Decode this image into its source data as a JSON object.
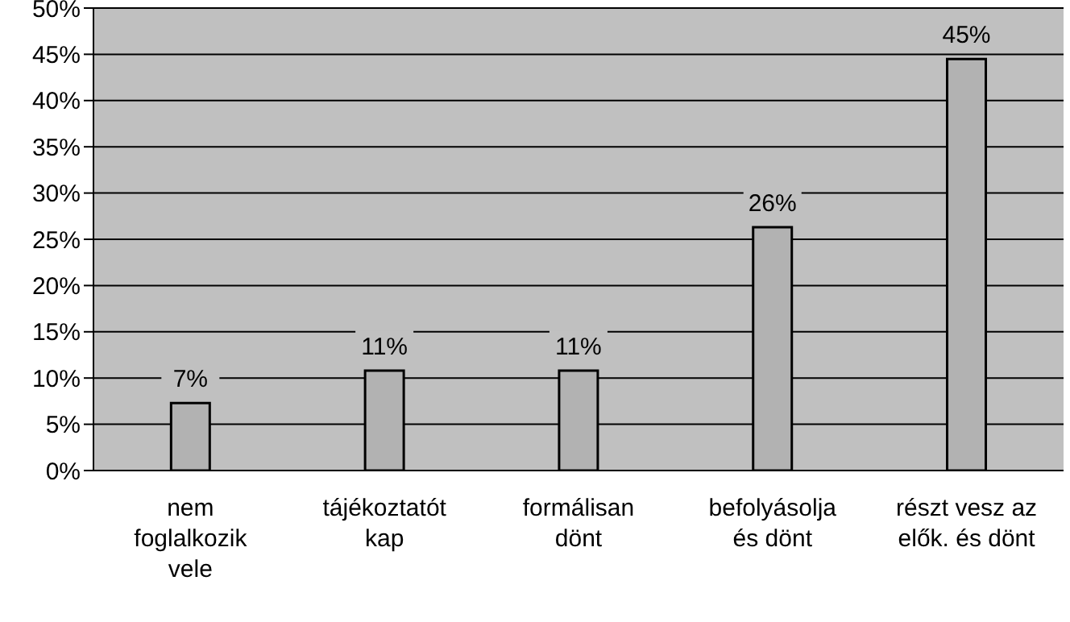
{
  "chart_data": {
    "type": "bar",
    "categories": [
      "nem foglalkozik vele",
      "tájékoztatót kap",
      "formálisan dönt",
      "befolyásolja és dönt",
      "részt vesz az elők. és dönt"
    ],
    "values": [
      7.3,
      10.8,
      10.8,
      26.3,
      44.5
    ],
    "value_labels": [
      "7%",
      "11%",
      "11%",
      "26%",
      "45%"
    ],
    "color": "#b2b2b2",
    "ylim": [
      0,
      50
    ],
    "yticks": [
      {
        "value": 0,
        "label": "0%"
      },
      {
        "value": 5,
        "label": "5%"
      },
      {
        "value": 10,
        "label": "10%"
      },
      {
        "value": 15,
        "label": "15%"
      },
      {
        "value": 20,
        "label": "20%"
      },
      {
        "value": 25,
        "label": "25%"
      },
      {
        "value": 30,
        "label": "30%"
      },
      {
        "value": 35,
        "label": "35%"
      },
      {
        "value": 40,
        "label": "40%"
      },
      {
        "value": 45,
        "label": "45%"
      },
      {
        "value": 50,
        "label": "50%"
      }
    ],
    "grid": "y",
    "legend": false
  }
}
